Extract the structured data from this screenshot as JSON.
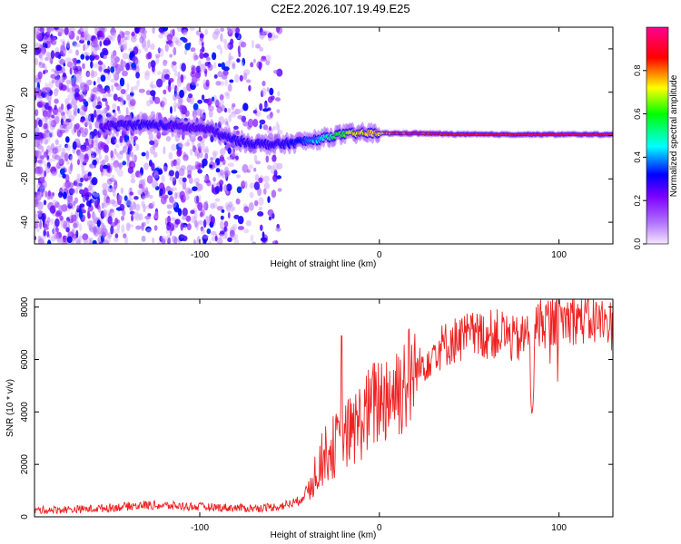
{
  "title": "C2E2.2026.107.19.49.E25",
  "chart_data": [
    {
      "type": "heatmap",
      "xlabel": "Height of straight line (km)",
      "ylabel": "Frequency (Hz)",
      "xlim": [
        -192,
        130
      ],
      "ylim": [
        -50,
        50
      ],
      "x_ticks": [
        -100,
        0,
        100
      ],
      "y_ticks": [
        -40,
        -20,
        0,
        20,
        40
      ],
      "colorbar": {
        "label": "Normalized spectral amplitude",
        "range": [
          0,
          1
        ],
        "ticks": [
          "0.0",
          "0.2",
          "0.4",
          "0.6",
          "0.8"
        ],
        "colors": [
          "#f4e6ff",
          "#7a00ff",
          "#0000ff",
          "#00ffff",
          "#00ff00",
          "#ffff00",
          "#ff0000",
          "#ff0090"
        ]
      },
      "ridge": {
        "x": [
          -155,
          -140,
          -125,
          -110,
          -95,
          -85,
          -75,
          -65,
          -55,
          -45,
          -35,
          -25,
          -15,
          0,
          20,
          50,
          80,
          100,
          130
        ],
        "frequency_hz": [
          4,
          5,
          5,
          4,
          3,
          -1,
          -3,
          -4,
          -4,
          -3,
          -2,
          0,
          1,
          1,
          1,
          0.5,
          0.5,
          0.5,
          0.5
        ],
        "peak_amplitude": [
          0.25,
          0.3,
          0.3,
          0.25,
          0.25,
          0.3,
          0.3,
          0.3,
          0.3,
          0.35,
          0.45,
          0.6,
          0.75,
          0.85,
          0.95,
          0.98,
          0.98,
          1.0,
          1.0
        ]
      }
    },
    {
      "type": "line",
      "xlabel": "Height of straight line (km)",
      "ylabel": "SNR (10 * v/v)",
      "xlim": [
        -192,
        130
      ],
      "ylim": [
        0,
        8300
      ],
      "x_ticks": [
        -100,
        0,
        100
      ],
      "y_ticks": [
        0,
        2000,
        4000,
        6000,
        8000
      ],
      "color": "#ee2222",
      "x": [
        -192,
        -160,
        -130,
        -100,
        -70,
        -55,
        -45,
        -40,
        -35,
        -30,
        -25,
        -20,
        -15,
        -10,
        -5,
        0,
        10,
        20,
        30,
        40,
        50,
        60,
        70,
        75,
        80,
        83,
        85,
        87,
        90,
        100,
        110,
        120,
        130
      ],
      "values": [
        250,
        300,
        450,
        380,
        320,
        400,
        600,
        1000,
        1800,
        2400,
        2700,
        3000,
        3300,
        3700,
        4100,
        4500,
        4900,
        5500,
        6300,
        6700,
        6900,
        6950,
        7000,
        6700,
        6800,
        7200,
        3800,
        7300,
        7400,
        7500,
        7600,
        7500,
        7300
      ]
    }
  ]
}
